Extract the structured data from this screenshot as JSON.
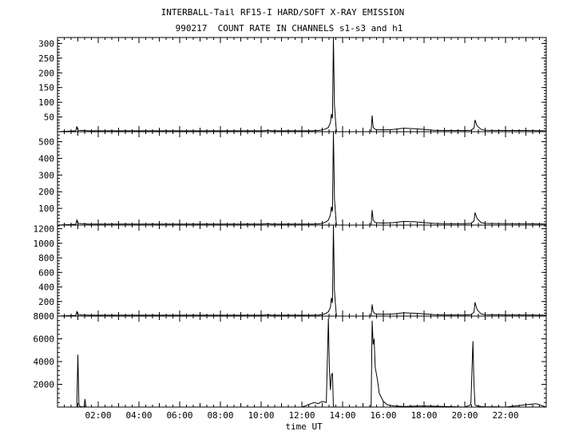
{
  "title_line1": "INTERBALL-Tail RF15-I HARD/SOFT X-RAY EMISSION",
  "title_line2": "990217  COUNT RATE IN CHANNELS s1-s3 and h1",
  "chart_data": [
    {
      "type": "line",
      "panel": "s1",
      "ylim": [
        0,
        320
      ],
      "yticks": [
        50,
        100,
        150,
        200,
        250,
        300
      ],
      "series": [
        {
          "x": [
            0.0,
            0.9,
            0.95,
            1.0,
            1.2,
            1.5,
            2.0,
            3.0,
            4.0,
            5.0,
            6.0,
            7.0,
            8.0,
            9.0,
            10.0,
            10.4,
            10.5,
            10.6,
            11.0,
            12.0,
            12.5,
            12.8,
            13.0,
            13.2,
            13.3,
            13.4,
            13.45,
            13.5,
            13.55,
            13.6,
            13.65,
            13.7,
            13.75,
            15.4,
            15.45,
            15.5,
            15.6,
            16.0,
            16.5,
            17.0,
            17.5,
            18.0,
            18.5,
            19.0,
            19.5,
            20.0,
            20.3,
            20.45,
            20.5,
            20.6,
            20.8,
            21.0,
            22.0,
            23.0,
            24.0
          ],
          "y": [
            0,
            3,
            18,
            5,
            4,
            3,
            3,
            3,
            3,
            3,
            3,
            3,
            3,
            3,
            3,
            5,
            3,
            3,
            3,
            3,
            3,
            4,
            6,
            10,
            15,
            30,
            60,
            45,
            320,
            90,
            40,
            0,
            0,
            0,
            55,
            15,
            8,
            6,
            8,
            12,
            10,
            8,
            5,
            4,
            4,
            4,
            5,
            12,
            40,
            20,
            8,
            5,
            4,
            4,
            3
          ]
        }
      ]
    },
    {
      "type": "line",
      "panel": "s2",
      "ylim": [
        0,
        560
      ],
      "yticks": [
        100,
        200,
        300,
        400,
        500
      ],
      "series": [
        {
          "x": [
            0.0,
            0.9,
            0.95,
            1.0,
            1.2,
            1.5,
            2.0,
            3.0,
            4.0,
            5.0,
            6.0,
            7.0,
            8.0,
            9.0,
            10.0,
            10.4,
            10.5,
            10.6,
            11.0,
            12.0,
            12.5,
            12.8,
            13.0,
            13.2,
            13.3,
            13.4,
            13.45,
            13.5,
            13.55,
            13.6,
            13.65,
            13.7,
            13.75,
            15.4,
            15.45,
            15.5,
            15.6,
            16.0,
            16.5,
            17.0,
            17.5,
            18.0,
            18.5,
            19.0,
            19.5,
            20.0,
            20.3,
            20.45,
            20.5,
            20.6,
            20.8,
            21.0,
            22.0,
            23.0,
            24.0
          ],
          "y": [
            0,
            5,
            30,
            10,
            8,
            6,
            6,
            6,
            6,
            6,
            6,
            6,
            6,
            6,
            6,
            8,
            6,
            6,
            6,
            6,
            6,
            7,
            10,
            20,
            30,
            60,
            110,
            80,
            560,
            160,
            70,
            0,
            0,
            0,
            90,
            30,
            15,
            12,
            15,
            22,
            20,
            15,
            10,
            8,
            8,
            8,
            10,
            25,
            75,
            40,
            15,
            10,
            8,
            8,
            6
          ]
        }
      ]
    },
    {
      "type": "line",
      "panel": "s3",
      "ylim": [
        0,
        1250
      ],
      "yticks": [
        200,
        400,
        600,
        800,
        1000,
        1200
      ],
      "series": [
        {
          "x": [
            0.0,
            0.9,
            0.95,
            1.0,
            1.2,
            1.5,
            2.0,
            3.0,
            4.0,
            5.0,
            6.0,
            7.0,
            8.0,
            9.0,
            10.0,
            10.4,
            10.5,
            10.6,
            11.0,
            12.0,
            12.5,
            12.8,
            13.0,
            13.2,
            13.3,
            13.4,
            13.45,
            13.5,
            13.55,
            13.6,
            13.65,
            13.7,
            13.75,
            15.4,
            15.45,
            15.5,
            15.6,
            16.0,
            16.5,
            17.0,
            17.5,
            18.0,
            18.5,
            19.0,
            19.5,
            20.0,
            20.3,
            20.45,
            20.5,
            20.6,
            20.8,
            21.0,
            22.0,
            23.0,
            24.0
          ],
          "y": [
            0,
            10,
            60,
            20,
            15,
            12,
            12,
            12,
            12,
            12,
            12,
            12,
            12,
            12,
            12,
            16,
            12,
            12,
            12,
            12,
            12,
            14,
            20,
            40,
            60,
            120,
            250,
            180,
            1250,
            350,
            150,
            0,
            0,
            0,
            160,
            60,
            30,
            25,
            30,
            45,
            40,
            30,
            20,
            15,
            15,
            15,
            20,
            50,
            190,
            90,
            30,
            20,
            15,
            15,
            12
          ]
        }
      ]
    },
    {
      "type": "line",
      "panel": "h1",
      "ylim": [
        0,
        8000
      ],
      "yticks": [
        2000,
        4000,
        6000,
        8000
      ],
      "series": [
        {
          "x": [
            0.0,
            0.95,
            1.0,
            1.05,
            1.1,
            1.3,
            1.35,
            1.4,
            2.0,
            3.0,
            4.0,
            5.0,
            6.0,
            7.0,
            8.0,
            9.0,
            10.0,
            11.0,
            12.0,
            12.6,
            12.8,
            13.0,
            13.2,
            13.3,
            13.35,
            13.4,
            13.45,
            13.5,
            13.55,
            13.6,
            13.65,
            13.7,
            15.4,
            15.45,
            15.5,
            15.55,
            15.6,
            15.7,
            15.8,
            16.0,
            16.2,
            16.5,
            17.0,
            17.5,
            18.0,
            19.0,
            20.0,
            20.3,
            20.4,
            20.45,
            20.5,
            20.55,
            20.6,
            20.8,
            21.0,
            21.5,
            22.0,
            23.0,
            23.5,
            24.0
          ],
          "y": [
            0,
            0,
            4600,
            300,
            50,
            0,
            700,
            0,
            0,
            0,
            0,
            0,
            0,
            0,
            0,
            0,
            0,
            0,
            0,
            400,
            300,
            500,
            400,
            7800,
            3500,
            1500,
            2800,
            3000,
            0,
            0,
            0,
            0,
            0,
            7600,
            5500,
            6000,
            3500,
            2500,
            1200,
            500,
            200,
            100,
            50,
            80,
            100,
            50,
            0,
            200,
            5800,
            2000,
            200,
            150,
            100,
            50,
            20,
            30,
            0,
            200,
            300,
            0
          ]
        }
      ]
    }
  ],
  "xaxis": {
    "label": "time UT",
    "xlim": [
      0,
      24
    ],
    "ticks": [
      2,
      4,
      6,
      8,
      10,
      12,
      14,
      16,
      18,
      20,
      22
    ],
    "tick_labels": [
      "02:00",
      "04:00",
      "06:00",
      "08:00",
      "10:00",
      "12:00",
      "14:00",
      "16:00",
      "18:00",
      "20:00",
      "22:00"
    ]
  }
}
